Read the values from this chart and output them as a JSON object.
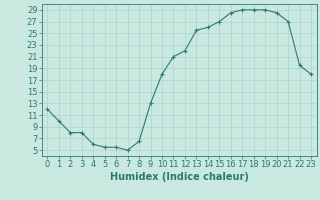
{
  "x": [
    0,
    1,
    2,
    3,
    4,
    5,
    6,
    7,
    8,
    9,
    10,
    11,
    12,
    13,
    14,
    15,
    16,
    17,
    18,
    19,
    20,
    21,
    22,
    23
  ],
  "y": [
    12,
    10,
    8,
    8,
    6,
    5.5,
    5.5,
    5,
    6.5,
    13,
    18,
    21,
    22,
    25.5,
    26,
    27,
    28.5,
    29,
    29,
    29,
    28.5,
    27,
    19.5,
    18
  ],
  "line_color": "#2d7a6e",
  "marker": "+",
  "marker_color": "#2d7a6e",
  "bg_color": "#c8e8e0",
  "grid_color": "#afd4cc",
  "xlabel": "Humidex (Indice chaleur)",
  "xlabel_fontsize": 7,
  "tick_color": "#2d7a6e",
  "tick_fontsize": 6,
  "xlim": [
    -0.5,
    23.5
  ],
  "ylim": [
    4,
    30
  ],
  "yticks": [
    5,
    7,
    9,
    11,
    13,
    15,
    17,
    19,
    21,
    23,
    25,
    27,
    29
  ],
  "xticks": [
    0,
    1,
    2,
    3,
    4,
    5,
    6,
    7,
    8,
    9,
    10,
    11,
    12,
    13,
    14,
    15,
    16,
    17,
    18,
    19,
    20,
    21,
    22,
    23
  ]
}
